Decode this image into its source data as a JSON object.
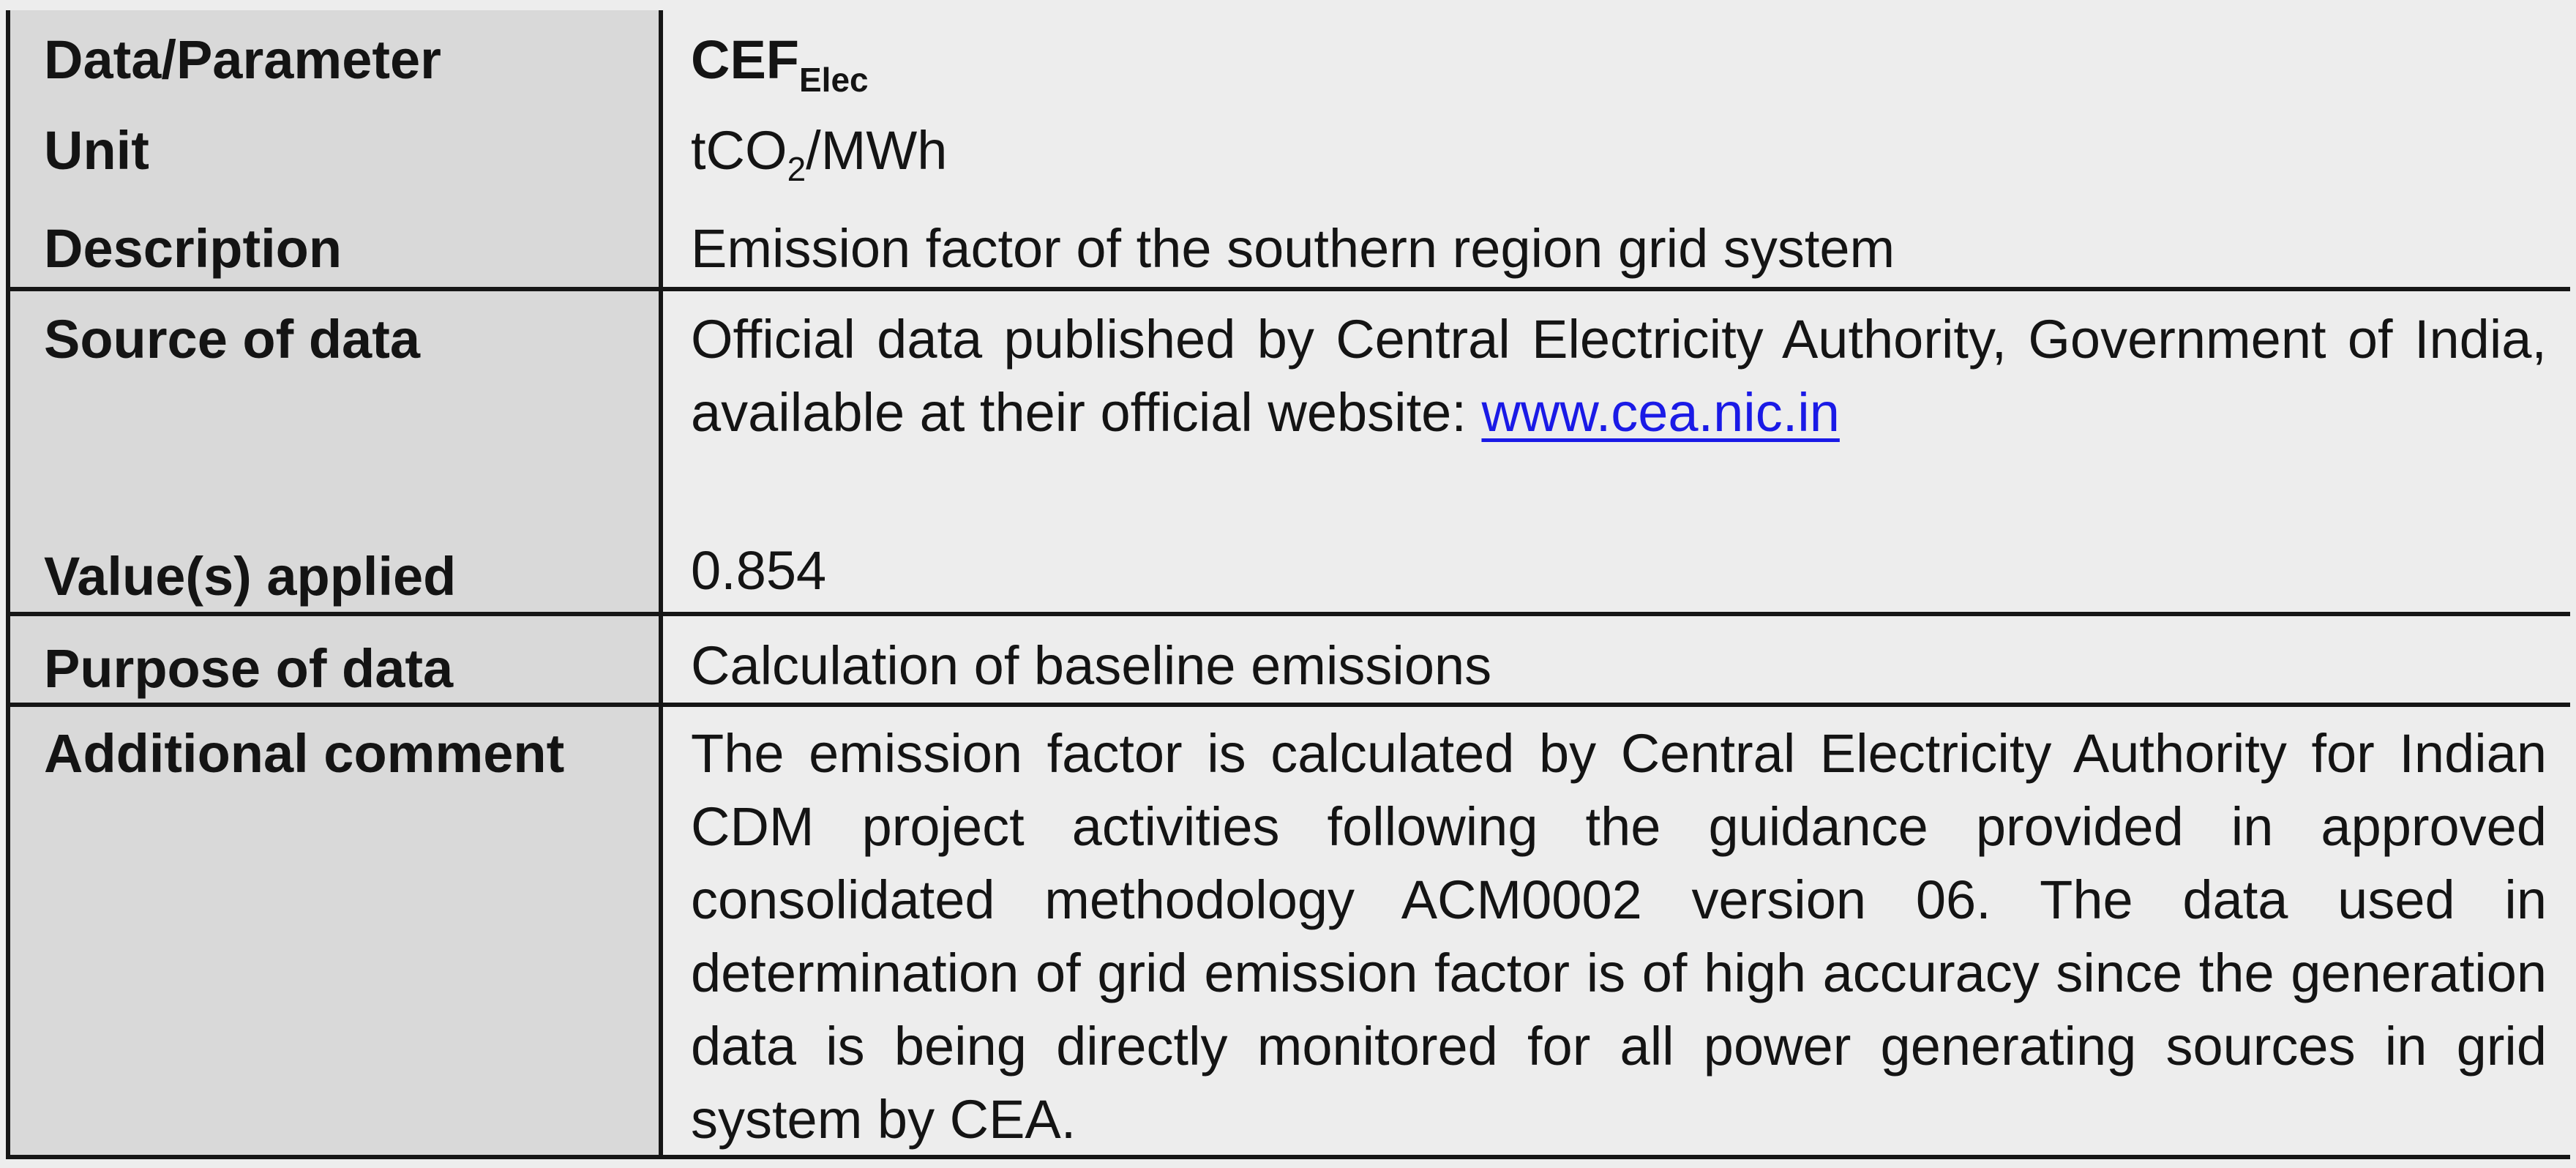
{
  "rows": {
    "data_parameter": {
      "label": "Data/Parameter",
      "value_main": "CEF",
      "value_sub": "Elec"
    },
    "unit": {
      "label": "Unit",
      "value_pre": "tCO",
      "value_sub": "2",
      "value_post": "/MWh"
    },
    "description": {
      "label": "Description",
      "value": "Emission factor of the southern region grid system"
    },
    "source_of_data": {
      "label": "Source of data",
      "value": "Official data published by Central Electricity Authority, Government of India, available at their official website:",
      "link": "www.cea.nic.in"
    },
    "values_applied": {
      "label": "Value(s) applied",
      "value": "0.854"
    },
    "purpose_of_data": {
      "label": "Purpose of data",
      "value": "Calculation of baseline emissions"
    },
    "additional_comment": {
      "label": "Additional comment",
      "value": "The emission factor is calculated by Central Electricity Authority for Indian CDM project activities following the guidance provided in approved consolidated methodology ACM0002 version 06. The data used in determination of grid emission factor is of high accuracy since the generation data is being directly monitored for all power generating sources in grid system by CEA."
    }
  }
}
